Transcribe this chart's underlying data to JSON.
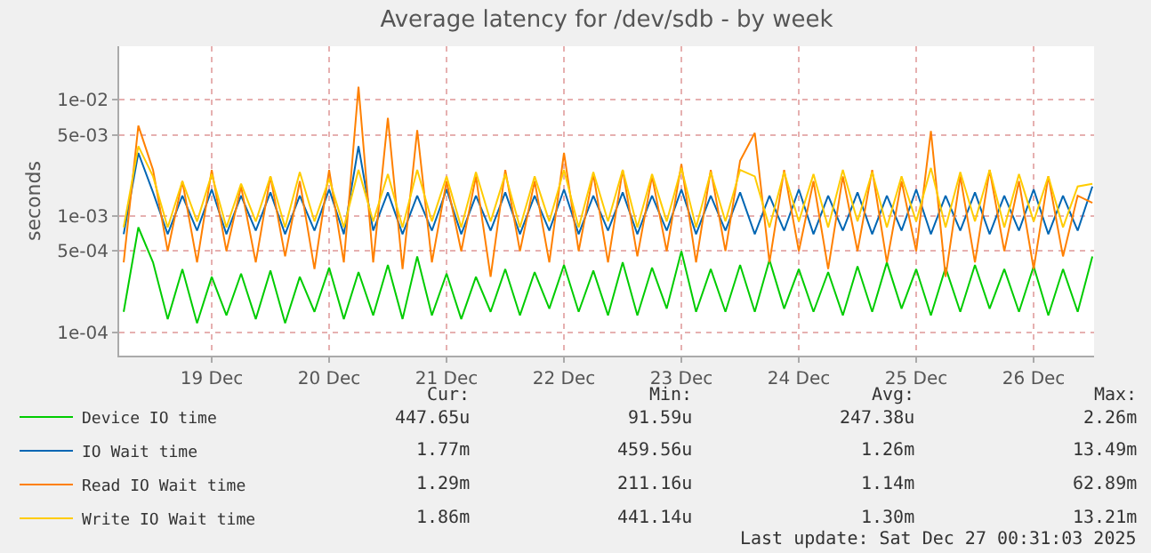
{
  "chart_data": {
    "type": "line",
    "title": "Average latency for /dev/sdb - by week",
    "ylabel": "seconds",
    "log": "y",
    "grid": true,
    "legend": "bottom left",
    "marker": "none",
    "line_style": "solid",
    "x": [
      "2025-12-18T18:00",
      "2025-12-18T21:00",
      "2025-12-19T00:00",
      "2025-12-19T03:00",
      "2025-12-19T06:00",
      "2025-12-19T09:00",
      "2025-12-19T12:00",
      "2025-12-19T15:00",
      "2025-12-19T18:00",
      "2025-12-19T21:00",
      "2025-12-20T00:00",
      "2025-12-20T03:00",
      "2025-12-20T06:00",
      "2025-12-20T09:00",
      "2025-12-20T12:00",
      "2025-12-20T15:00",
      "2025-12-20T18:00",
      "2025-12-20T21:00",
      "2025-12-21T00:00",
      "2025-12-21T03:00",
      "2025-12-21T06:00",
      "2025-12-21T09:00",
      "2025-12-21T12:00",
      "2025-12-21T15:00",
      "2025-12-21T18:00",
      "2025-12-21T21:00",
      "2025-12-22T00:00",
      "2025-12-22T03:00",
      "2025-12-22T06:00",
      "2025-12-22T09:00",
      "2025-12-22T12:00",
      "2025-12-22T15:00",
      "2025-12-22T18:00",
      "2025-12-22T21:00",
      "2025-12-23T00:00",
      "2025-12-23T03:00",
      "2025-12-23T06:00",
      "2025-12-23T09:00",
      "2025-12-23T12:00",
      "2025-12-23T15:00",
      "2025-12-23T18:00",
      "2025-12-23T21:00",
      "2025-12-24T00:00",
      "2025-12-24T03:00",
      "2025-12-24T06:00",
      "2025-12-24T09:00",
      "2025-12-24T12:00",
      "2025-12-24T15:00",
      "2025-12-24T18:00",
      "2025-12-24T21:00",
      "2025-12-25T00:00",
      "2025-12-25T03:00",
      "2025-12-25T06:00",
      "2025-12-25T09:00",
      "2025-12-25T12:00",
      "2025-12-25T15:00",
      "2025-12-25T18:00",
      "2025-12-25T21:00",
      "2025-12-26T00:00",
      "2025-12-26T03:00",
      "2025-12-26T06:00",
      "2025-12-26T09:00",
      "2025-12-26T12:00",
      "2025-12-26T15:00",
      "2025-12-26T18:00",
      "2025-12-26T21:00",
      "2025-12-27T00:00"
    ],
    "xlim": [
      "2025-12-18T17:05",
      "2025-12-27T00:21"
    ],
    "xticks": [
      {
        "value": "2025-12-19T12:00",
        "label": "19 Dec"
      },
      {
        "value": "2025-12-20T12:00",
        "label": "20 Dec"
      },
      {
        "value": "2025-12-21T12:00",
        "label": "21 Dec"
      },
      {
        "value": "2025-12-22T12:00",
        "label": "22 Dec"
      },
      {
        "value": "2025-12-23T12:00",
        "label": "23 Dec"
      },
      {
        "value": "2025-12-24T12:00",
        "label": "24 Dec"
      },
      {
        "value": "2025-12-25T12:00",
        "label": "25 Dec"
      },
      {
        "value": "2025-12-26T12:00",
        "label": "26 Dec"
      }
    ],
    "ylim": [
      6.3e-05,
      0.029
    ],
    "yticks": [
      {
        "value": 0.0001,
        "label": "1e-04"
      },
      {
        "value": 0.0005,
        "label": "5e-04"
      },
      {
        "value": 0.001,
        "label": "1e-03"
      },
      {
        "value": 0.005,
        "label": "5e-03"
      },
      {
        "value": 0.01,
        "label": "1e-02"
      }
    ],
    "series": [
      {
        "name": "Device IO time",
        "color": "#00cc00",
        "values": [
          0.00015,
          0.0008,
          0.0004,
          0.00013,
          0.00035,
          0.00012,
          0.0003,
          0.00014,
          0.00032,
          0.00013,
          0.00034,
          0.00012,
          0.0003,
          0.00015,
          0.00036,
          0.00013,
          0.00033,
          0.00014,
          0.00038,
          0.00013,
          0.00045,
          0.00014,
          0.00032,
          0.00013,
          0.0003,
          0.00015,
          0.00035,
          0.00014,
          0.00033,
          0.00016,
          0.00038,
          0.00015,
          0.00034,
          0.00014,
          0.0004,
          0.00014,
          0.00036,
          0.00016,
          0.0005,
          0.00015,
          0.00035,
          0.00015,
          0.00038,
          0.00015,
          0.00042,
          0.00016,
          0.00035,
          0.00015,
          0.00033,
          0.00014,
          0.00037,
          0.00015,
          0.0004,
          0.00016,
          0.00035,
          0.00014,
          0.00036,
          0.00015,
          0.00038,
          0.00016,
          0.00035,
          0.00015,
          0.00037,
          0.00014,
          0.00035,
          0.00015,
          0.00045
        ]
      },
      {
        "name": "IO Wait time",
        "color": "#0066b3",
        "values": [
          0.0007,
          0.0035,
          0.0016,
          0.0007,
          0.0015,
          0.00075,
          0.0017,
          0.0007,
          0.0015,
          0.00075,
          0.0016,
          0.0007,
          0.0015,
          0.00075,
          0.0017,
          0.0007,
          0.004,
          0.00075,
          0.0016,
          0.0007,
          0.0015,
          0.00075,
          0.0017,
          0.0007,
          0.0015,
          0.00075,
          0.0016,
          0.0007,
          0.0015,
          0.00075,
          0.0017,
          0.0007,
          0.0015,
          0.00075,
          0.0016,
          0.0007,
          0.0015,
          0.00075,
          0.0017,
          0.0007,
          0.0015,
          0.00075,
          0.0016,
          0.0007,
          0.0015,
          0.00075,
          0.0017,
          0.0007,
          0.0015,
          0.00075,
          0.0016,
          0.0007,
          0.0015,
          0.00075,
          0.0017,
          0.0007,
          0.0015,
          0.00075,
          0.0016,
          0.0007,
          0.0015,
          0.00075,
          0.0017,
          0.0007,
          0.0015,
          0.00075,
          0.0018
        ]
      },
      {
        "name": "Read IO Wait time",
        "color": "#ff8000",
        "values": [
          0.0004,
          0.006,
          0.0025,
          0.0005,
          0.002,
          0.0004,
          0.0025,
          0.0005,
          0.0018,
          0.0004,
          0.0022,
          0.00045,
          0.002,
          0.00035,
          0.0025,
          0.0004,
          0.013,
          0.0004,
          0.007,
          0.00035,
          0.0055,
          0.0004,
          0.002,
          0.0005,
          0.0022,
          0.0003,
          0.0025,
          0.0005,
          0.002,
          0.0004,
          0.0035,
          0.0005,
          0.0023,
          0.0004,
          0.0025,
          0.00045,
          0.0022,
          0.0005,
          0.0028,
          0.0004,
          0.0025,
          0.0005,
          0.003,
          0.0052,
          0.0004,
          0.0025,
          0.0005,
          0.002,
          0.00035,
          0.0022,
          0.0005,
          0.0025,
          0.0004,
          0.002,
          0.0005,
          0.0054,
          0.0003,
          0.0022,
          0.0004,
          0.0025,
          0.0005,
          0.002,
          0.00035,
          0.0022,
          0.00045,
          0.0015,
          0.0013
        ]
      },
      {
        "name": "Write IO Wait time",
        "color": "#ffcc00",
        "values": [
          0.0008,
          0.004,
          0.0022,
          0.0008,
          0.002,
          0.0009,
          0.0023,
          0.0008,
          0.0019,
          0.0009,
          0.0022,
          0.0008,
          0.0024,
          0.0009,
          0.0021,
          0.0008,
          0.0025,
          0.0009,
          0.0023,
          0.0008,
          0.0025,
          0.0009,
          0.0022,
          0.0008,
          0.0024,
          0.0009,
          0.0023,
          0.0008,
          0.0022,
          0.0009,
          0.0025,
          0.0008,
          0.0024,
          0.0009,
          0.0025,
          0.0008,
          0.0023,
          0.0009,
          0.0026,
          0.0008,
          0.0024,
          0.0009,
          0.0025,
          0.0022,
          0.0008,
          0.0024,
          0.0009,
          0.0023,
          0.0008,
          0.0025,
          0.0009,
          0.0024,
          0.0008,
          0.0022,
          0.0009,
          0.0026,
          0.0008,
          0.0024,
          0.0009,
          0.0025,
          0.0008,
          0.0023,
          0.0009,
          0.0022,
          0.0008,
          0.0018,
          0.0019
        ]
      }
    ],
    "annotations": [
      "Cur:",
      "Min:",
      "Avg:",
      "Max:",
      "447.65u",
      "91.59u",
      "247.38u",
      "2.26m",
      "1.77m",
      "459.56u",
      "1.26m",
      "13.49m",
      "1.29m",
      "211.16u",
      "1.14m",
      "62.89m",
      "1.86m",
      "441.14u",
      "1.30m",
      "13.21m",
      "Last update: Sat Dec 27 00:31:03 2025"
    ]
  }
}
